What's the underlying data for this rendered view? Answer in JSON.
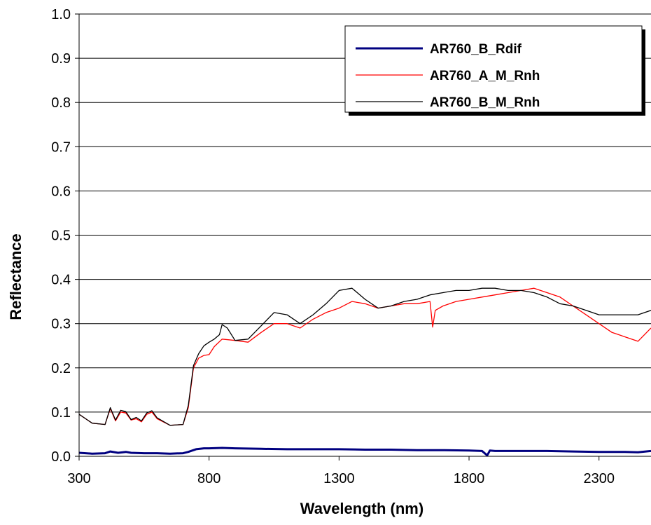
{
  "chart_data": {
    "type": "line",
    "title": "",
    "xlabel": "Wavelength (nm)",
    "ylabel": "Reflectance",
    "xlim": [
      300,
      2500
    ],
    "ylim": [
      0,
      1.0
    ],
    "xticks": [
      300,
      800,
      1300,
      1800,
      2300
    ],
    "xtick_labels": [
      "300",
      "800",
      "1300",
      "1800",
      "2300"
    ],
    "yticks": [
      0,
      0.1,
      0.2,
      0.3,
      0.4,
      0.5,
      0.6,
      0.7,
      0.8,
      0.9,
      1.0
    ],
    "ytick_labels": [
      "0.0",
      "0.1",
      "0.2",
      "0.3",
      "0.4",
      "0.5",
      "0.6",
      "0.7",
      "0.8",
      "0.9",
      "1.0"
    ],
    "grid": "horizontal",
    "legend_position": "top-right",
    "series": [
      {
        "name": "AR760_B_Rdif",
        "color": "#000080",
        "x": [
          300,
          350,
          400,
          420,
          450,
          480,
          500,
          550,
          600,
          650,
          700,
          720,
          750,
          780,
          800,
          850,
          900,
          1000,
          1100,
          1200,
          1300,
          1400,
          1500,
          1600,
          1700,
          1800,
          1850,
          1870,
          1880,
          1900,
          2000,
          2100,
          2200,
          2300,
          2400,
          2450,
          2500
        ],
        "y": [
          0.008,
          0.006,
          0.007,
          0.011,
          0.008,
          0.01,
          0.008,
          0.007,
          0.007,
          0.006,
          0.007,
          0.01,
          0.016,
          0.018,
          0.018,
          0.019,
          0.018,
          0.017,
          0.016,
          0.016,
          0.016,
          0.015,
          0.015,
          0.014,
          0.014,
          0.013,
          0.012,
          0.002,
          0.013,
          0.012,
          0.012,
          0.012,
          0.011,
          0.01,
          0.01,
          0.009,
          0.012
        ]
      },
      {
        "name": "AR760_A_M_Rnh",
        "color": "#ff0000",
        "x": [
          300,
          350,
          400,
          420,
          440,
          460,
          480,
          500,
          520,
          540,
          560,
          580,
          600,
          650,
          700,
          720,
          740,
          760,
          780,
          800,
          820,
          850,
          900,
          950,
          1000,
          1050,
          1100,
          1150,
          1200,
          1250,
          1300,
          1350,
          1400,
          1450,
          1500,
          1550,
          1600,
          1650,
          1660,
          1670,
          1700,
          1750,
          1800,
          1850,
          1900,
          1950,
          2000,
          2050,
          2100,
          2150,
          2200,
          2250,
          2300,
          2350,
          2400,
          2450,
          2500
        ],
        "y": [
          0.095,
          0.075,
          0.072,
          0.108,
          0.08,
          0.1,
          0.098,
          0.082,
          0.085,
          0.078,
          0.095,
          0.1,
          0.085,
          0.07,
          0.072,
          0.11,
          0.2,
          0.222,
          0.228,
          0.23,
          0.248,
          0.265,
          0.262,
          0.258,
          0.28,
          0.3,
          0.3,
          0.29,
          0.31,
          0.325,
          0.335,
          0.35,
          0.345,
          0.335,
          0.34,
          0.345,
          0.345,
          0.35,
          0.292,
          0.33,
          0.34,
          0.35,
          0.355,
          0.36,
          0.365,
          0.37,
          0.375,
          0.38,
          0.37,
          0.36,
          0.34,
          0.32,
          0.3,
          0.28,
          0.27,
          0.26,
          0.29
        ]
      },
      {
        "name": "AR760_B_M_Rnh",
        "color": "#000000",
        "x": [
          300,
          350,
          400,
          420,
          440,
          460,
          480,
          500,
          520,
          540,
          560,
          580,
          600,
          650,
          700,
          720,
          740,
          760,
          780,
          800,
          820,
          840,
          850,
          870,
          900,
          950,
          1000,
          1050,
          1100,
          1150,
          1200,
          1250,
          1300,
          1350,
          1400,
          1450,
          1500,
          1550,
          1600,
          1650,
          1700,
          1750,
          1800,
          1850,
          1900,
          1950,
          2000,
          2050,
          2100,
          2150,
          2200,
          2250,
          2300,
          2350,
          2400,
          2450,
          2500
        ],
        "y": [
          0.095,
          0.075,
          0.072,
          0.11,
          0.082,
          0.104,
          0.101,
          0.083,
          0.088,
          0.08,
          0.098,
          0.103,
          0.087,
          0.07,
          0.072,
          0.115,
          0.205,
          0.232,
          0.25,
          0.258,
          0.265,
          0.275,
          0.298,
          0.29,
          0.262,
          0.265,
          0.295,
          0.325,
          0.32,
          0.3,
          0.32,
          0.345,
          0.375,
          0.38,
          0.355,
          0.335,
          0.34,
          0.35,
          0.355,
          0.365,
          0.37,
          0.375,
          0.375,
          0.38,
          0.38,
          0.375,
          0.375,
          0.37,
          0.36,
          0.345,
          0.34,
          0.33,
          0.32,
          0.32,
          0.32,
          0.32,
          0.33
        ]
      }
    ]
  }
}
